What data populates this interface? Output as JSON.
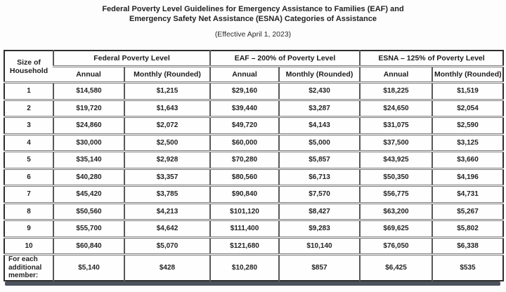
{
  "page": {
    "title_line1": "Federal Poverty Level Guidelines for Emergency Assistance to Families (EAF) and",
    "title_line2": "Emergency Safety Net Assistance (ESNA) Categories of Assistance",
    "subtitle": "(Effective April 1, 2023)"
  },
  "colors": {
    "text": "#1c1c1c",
    "table_border": "#2e2e2e",
    "row_separator": "#7b7b7b",
    "bottom_bar": "#4d535d"
  },
  "table": {
    "corner_header": "Size of Household",
    "group_headers": [
      "Federal Poverty Level",
      "EAF – 200% of Poverty Level",
      "ESNA – 125% of Poverty Level"
    ],
    "sub_headers": [
      "Annual",
      "Monthly (Rounded)",
      "Annual",
      "Monthly (Rounded)",
      "Annual",
      "Monthly (Rounded)"
    ],
    "row_fields": [
      "size",
      "fpl_annual",
      "fpl_monthly",
      "eaf_annual",
      "eaf_monthly",
      "esna_annual",
      "esna_monthly"
    ],
    "rows": [
      {
        "size": "1",
        "fpl_annual": "$14,580",
        "fpl_monthly": "$1,215",
        "eaf_annual": "$29,160",
        "eaf_monthly": "$2,430",
        "esna_annual": "$18,225",
        "esna_monthly": "$1,519"
      },
      {
        "size": "2",
        "fpl_annual": "$19,720",
        "fpl_monthly": "$1,643",
        "eaf_annual": "$39,440",
        "eaf_monthly": "$3,287",
        "esna_annual": "$24,650",
        "esna_monthly": "$2,054"
      },
      {
        "size": "3",
        "fpl_annual": "$24,860",
        "fpl_monthly": "$2,072",
        "eaf_annual": "$49,720",
        "eaf_monthly": "$4,143",
        "esna_annual": "$31,075",
        "esna_monthly": "$2,590"
      },
      {
        "size": "4",
        "fpl_annual": "$30,000",
        "fpl_monthly": "$2,500",
        "eaf_annual": "$60,000",
        "eaf_monthly": "$5,000",
        "esna_annual": "$37,500",
        "esna_monthly": "$3,125"
      },
      {
        "size": "5",
        "fpl_annual": "$35,140",
        "fpl_monthly": "$2,928",
        "eaf_annual": "$70,280",
        "eaf_monthly": "$5,857",
        "esna_annual": "$43,925",
        "esna_monthly": "$3,660"
      },
      {
        "size": "6",
        "fpl_annual": "$40,280",
        "fpl_monthly": "$3,357",
        "eaf_annual": "$80,560",
        "eaf_monthly": "$6,713",
        "esna_annual": "$50,350",
        "esna_monthly": "$4,196"
      },
      {
        "size": "7",
        "fpl_annual": "$45,420",
        "fpl_monthly": "$3,785",
        "eaf_annual": "$90,840",
        "eaf_monthly": "$7,570",
        "esna_annual": "$56,775",
        "esna_monthly": "$4,731"
      },
      {
        "size": "8",
        "fpl_annual": "$50,560",
        "fpl_monthly": "$4,213",
        "eaf_annual": "$101,120",
        "eaf_monthly": "$8,427",
        "esna_annual": "$63,200",
        "esna_monthly": "$5,267"
      },
      {
        "size": "9",
        "fpl_annual": "$55,700",
        "fpl_monthly": "$4,642",
        "eaf_annual": "$111,400",
        "eaf_monthly": "$9,283",
        "esna_annual": "$69,625",
        "esna_monthly": "$5,802"
      },
      {
        "size": "10",
        "fpl_annual": "$60,840",
        "fpl_monthly": "$5,070",
        "eaf_annual": "$121,680",
        "eaf_monthly": "$10,140",
        "esna_annual": "$76,050",
        "esna_monthly": "$6,338"
      },
      {
        "size": "For each additional member:",
        "fpl_annual": "$5,140",
        "fpl_monthly": "$428",
        "eaf_annual": "$10,280",
        "eaf_monthly": "$857",
        "esna_annual": "$6,425",
        "esna_monthly": "$535"
      }
    ]
  }
}
